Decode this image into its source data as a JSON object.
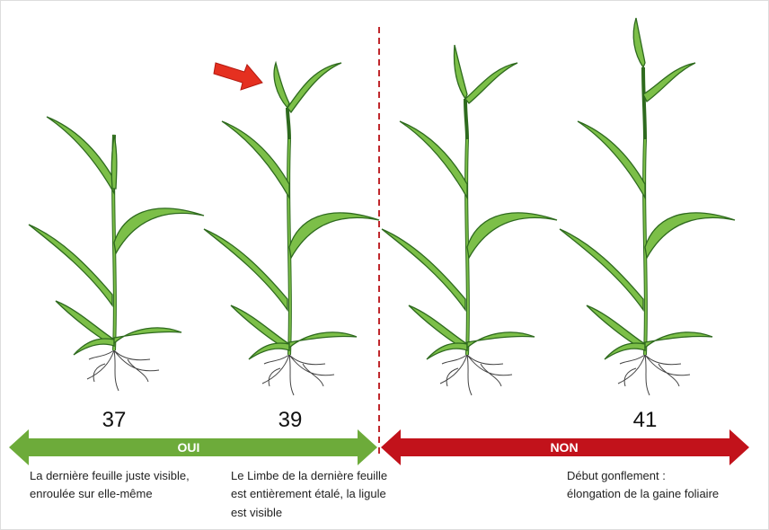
{
  "stages": [
    {
      "code": "37",
      "description": [
        "La dernière feuille juste visible,",
        "enroulée sur elle-même"
      ]
    },
    {
      "code": "39",
      "description": [
        "Le Limbe de la dernière feuille",
        "est entièrement étalé, la ligule",
        "est visible"
      ]
    },
    {
      "code": "41",
      "description": [
        "Début gonflement :",
        "élongation de la gaine foliaire"
      ]
    }
  ],
  "zones": {
    "yes": "OUI",
    "no": "NON"
  }
}
